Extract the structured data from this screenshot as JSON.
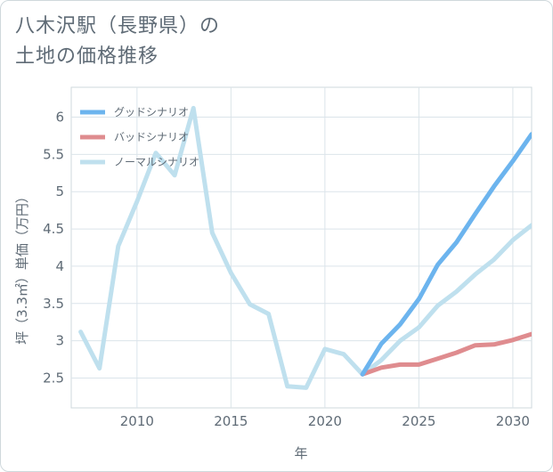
{
  "title": {
    "line1": "八木沢駅（長野県）の",
    "line2": "土地の価格推移"
  },
  "chart_data": {
    "type": "line",
    "xlabel": "年",
    "ylabel": "坪（3.3㎡）単価（万円）",
    "xlim": [
      2006.5,
      2031
    ],
    "ylim": [
      2.1,
      6.4
    ],
    "x_ticks": [
      2010,
      2015,
      2020,
      2025,
      2030
    ],
    "x_tick_labels": [
      "2010",
      "2015",
      "2020",
      "2025",
      "2030"
    ],
    "y_ticks": [
      2.5,
      3,
      3.5,
      4,
      4.5,
      5,
      5.5,
      6
    ],
    "y_tick_labels": [
      "2.5",
      "3",
      "3.5",
      "4",
      "4.5",
      "5",
      "5.5",
      "6"
    ],
    "grid": true,
    "legend_position": "top-left",
    "series": [
      {
        "name": "グッドシナリオ",
        "color": "#6cb4ee",
        "x": [
          2022,
          2023,
          2024,
          2025,
          2026,
          2027,
          2028,
          2029,
          2030,
          2031
        ],
        "values": [
          2.55,
          2.96,
          3.22,
          3.56,
          4.02,
          4.32,
          4.7,
          5.07,
          5.41,
          5.77
        ]
      },
      {
        "name": "バッドシナリオ",
        "color": "#df8c8f",
        "x": [
          2022,
          2023,
          2024,
          2025,
          2026,
          2027,
          2028,
          2029,
          2030,
          2031
        ],
        "values": [
          2.55,
          2.64,
          2.68,
          2.68,
          2.76,
          2.84,
          2.94,
          2.95,
          3.01,
          3.09
        ]
      },
      {
        "name": "ノーマルシナリオ",
        "color": "#bfe0ee",
        "x": [
          2007,
          2008,
          2009,
          2010,
          2011,
          2012,
          2013,
          2014,
          2015,
          2016,
          2017,
          2018,
          2019,
          2020,
          2021,
          2022,
          2023,
          2024,
          2025,
          2026,
          2027,
          2028,
          2029,
          2030,
          2031
        ],
        "values": [
          3.12,
          2.63,
          4.27,
          4.87,
          5.52,
          5.22,
          6.12,
          4.45,
          3.91,
          3.49,
          3.36,
          2.39,
          2.37,
          2.89,
          2.82,
          2.55,
          2.74,
          3.0,
          3.18,
          3.47,
          3.66,
          3.89,
          4.09,
          4.35,
          4.55
        ]
      }
    ]
  }
}
